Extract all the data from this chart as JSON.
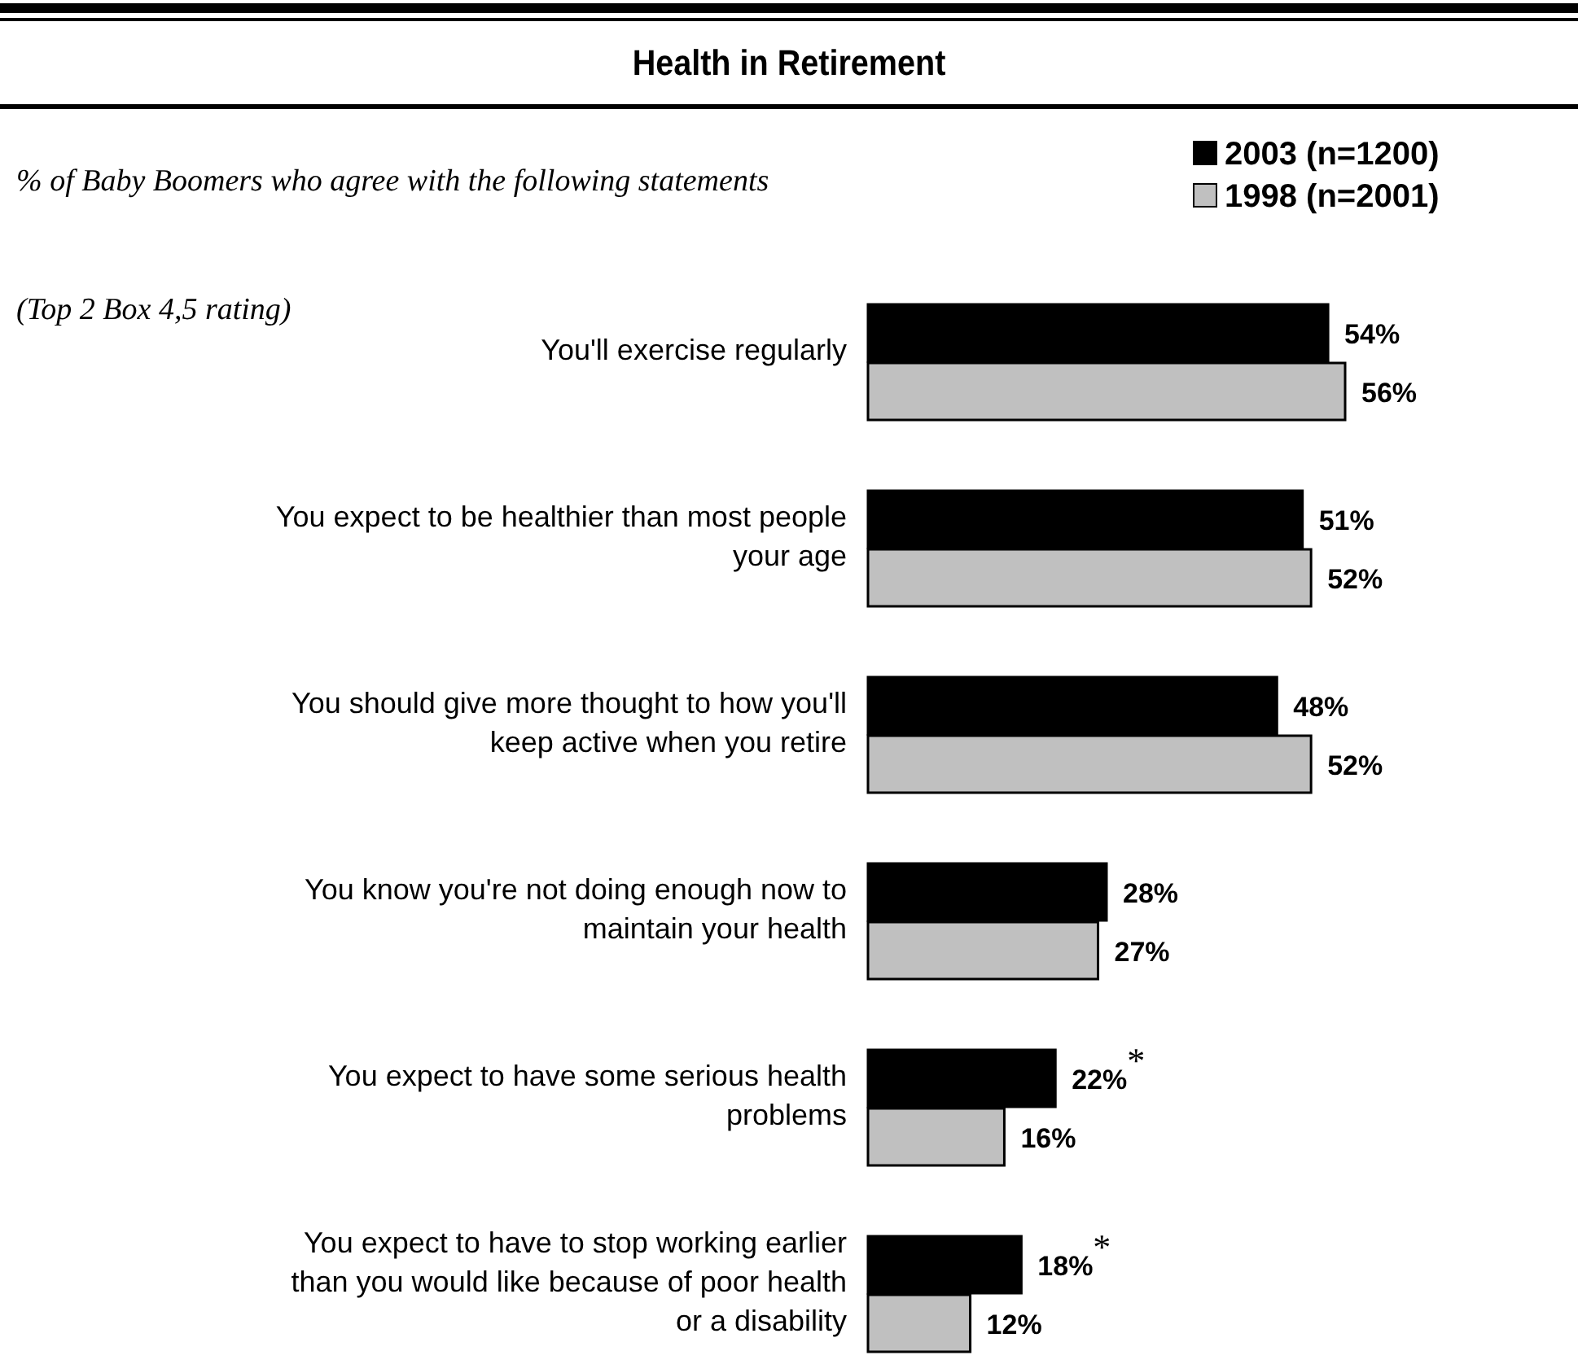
{
  "chart_data": {
    "type": "bar",
    "orientation": "horizontal",
    "title": "Health in Retirement",
    "subtitle": "% of Baby Boomers who agree with the following statements",
    "annotations": [
      "(Top 2 Box 4,5 rating)",
      {
        "text": "*",
        "x": 22,
        "y": "You expect to have some serious health problems"
      },
      {
        "text": "*",
        "x": 18,
        "y": "You expect to have to stop working earlier than you would like because of poor health or a disability"
      }
    ],
    "categories": [
      "You'll exercise regularly",
      "You expect to be healthier than most people your age",
      "You should give more thought to how you'll keep active when you retire",
      "You know you're not doing enough now to maintain your health",
      "You expect to have some serious health problems",
      "You expect to have to stop working earlier than you would like because of poor health or a disability"
    ],
    "series": [
      {
        "name": "2003 (n=1200)",
        "color": "#000000",
        "values": [
          54,
          51,
          48,
          28,
          22,
          18
        ],
        "value_labels": [
          "54%",
          "51%",
          "48%",
          "28%",
          "22%",
          "18%"
        ]
      },
      {
        "name": "1998 (n=2001)",
        "color": "#c0c0c0",
        "values": [
          56,
          52,
          52,
          27,
          16,
          12
        ],
        "value_labels": [
          "56%",
          "52%",
          "52%",
          "27%",
          "16%",
          "12%"
        ]
      }
    ],
    "legend": "top right",
    "tick_labels": "y"
  }
}
